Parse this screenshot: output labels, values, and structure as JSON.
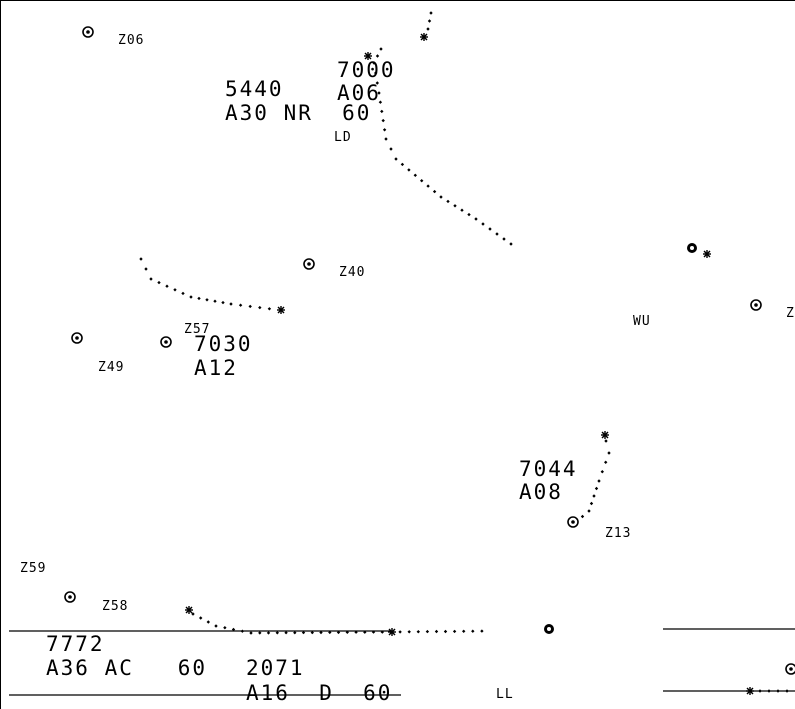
{
  "colors": {
    "background": "#ffffff",
    "ink": "#000000"
  },
  "fixes": [
    {
      "id": "fix-z06",
      "label": "Z06"
    },
    {
      "id": "fix-z40",
      "label": "Z40"
    },
    {
      "id": "fix-z57",
      "label": "Z57"
    },
    {
      "id": "fix-z49",
      "label": "Z49"
    },
    {
      "id": "fix-z13",
      "label": "Z13"
    },
    {
      "id": "fix-z59",
      "label": "Z59"
    },
    {
      "id": "fix-z58",
      "label": "Z58"
    },
    {
      "id": "fix-z-edge",
      "label": "Z"
    }
  ],
  "misc_labels": {
    "ld": "LD",
    "wu": "WU",
    "ll": "LL"
  },
  "datablocks": {
    "t5440": {
      "line1": "5440",
      "line2": "A30 NR  60"
    },
    "t7000": {
      "line1": "7000",
      "line2": "A06"
    },
    "t7030": {
      "line1": "7030",
      "line2": "A12"
    },
    "t7044": {
      "line1": "7044",
      "line2": "A08"
    },
    "t7772": {
      "line1": "7772",
      "line2": "A36 AC   60"
    },
    "t2071": {
      "line1": "2071",
      "line2": "A16  D  60"
    }
  },
  "icons": {
    "fix_symbol": "fix-circle-icon",
    "target_symbol": "aircraft-asterisk-icon",
    "history_trail": "history-dot-icon",
    "airport_symbol": "airport-dot-icon"
  }
}
